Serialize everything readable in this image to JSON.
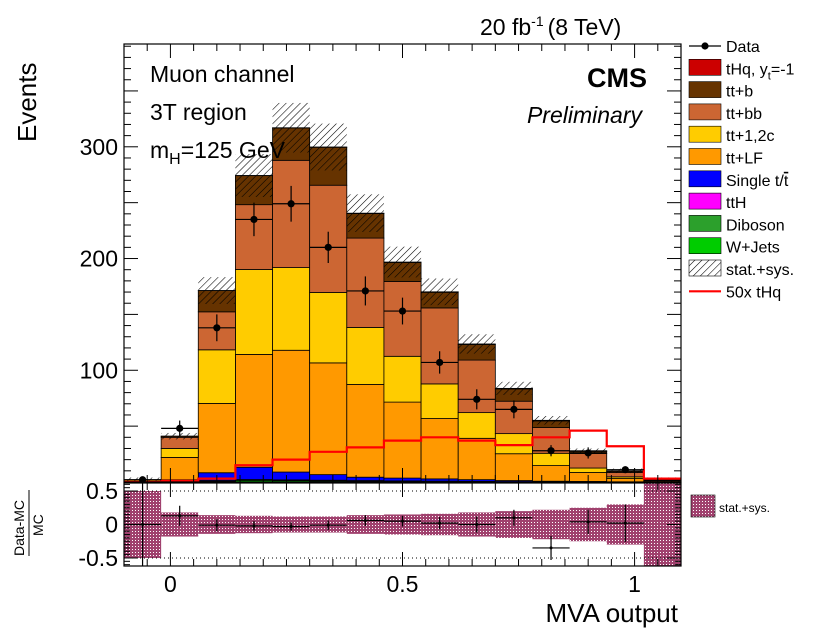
{
  "chart_data": {
    "type": "bar",
    "subtype": "stacked-histogram",
    "header_right": {
      "lumi": "20 fb",
      "lumi_exp": "-1",
      "energy": "(8 TeV)"
    },
    "experiment": "CMS",
    "status": "Preliminary",
    "annotations": [
      {
        "main": "Muon channel",
        "sub": ""
      },
      {
        "main": "3T region",
        "sub": ""
      },
      {
        "main": "m",
        "sub": "H",
        "rest": "=125 GeV"
      }
    ],
    "ylabel": "Events",
    "xlabel": "MVA output",
    "ylim": [
      0,
      392
    ],
    "yticks": [
      100,
      200,
      300
    ],
    "xlim": [
      -0.1,
      1.1
    ],
    "xticks": [
      0,
      0.5,
      1
    ],
    "xtick_labels": [
      "0",
      "0.5",
      "1"
    ],
    "bin_edges": [
      -0.1,
      -0.02,
      0.06,
      0.14,
      0.22,
      0.3,
      0.38,
      0.46,
      0.54,
      0.62,
      0.7,
      0.78,
      0.86,
      0.94,
      1.02,
      1.1
    ],
    "series": [
      {
        "name": "W+Jets",
        "label": "W+Jets",
        "color": "#00cc00",
        "values": [
          0,
          0.3,
          0.8,
          1.5,
          1.2,
          1.0,
          0.8,
          0.6,
          0.5,
          0.3,
          0.2,
          0.1,
          0.1,
          0,
          0
        ]
      },
      {
        "name": "Diboson",
        "label": "Diboson",
        "color": "#2ca02c",
        "values": [
          0,
          0.1,
          0.2,
          0.3,
          0.3,
          0.2,
          0.2,
          0.1,
          0.1,
          0.1,
          0,
          0,
          0,
          0,
          0
        ]
      },
      {
        "name": "ttH",
        "label": "ttH",
        "color": "#ff00ff",
        "values": [
          0,
          0.1,
          0.3,
          0.4,
          0.4,
          0.4,
          0.3,
          0.3,
          0.2,
          0.2,
          0.1,
          0.1,
          0.1,
          0,
          0
        ]
      },
      {
        "name": "single-top",
        "label": "Single t/",
        "label_bar": "t",
        "color": "#0000ff",
        "values": [
          0,
          1.5,
          7,
          11,
          7,
          5,
          3,
          2.5,
          2,
          1.5,
          1,
          0.5,
          0.3,
          0.1,
          0
        ]
      },
      {
        "name": "tt-lf",
        "label": "tt+LF",
        "color": "#ff9900",
        "values": [
          2,
          20,
          62,
          101,
          109,
          100,
          83,
          68,
          54,
          37,
          24,
          14,
          8,
          3,
          1
        ]
      },
      {
        "name": "tt-12c",
        "label": "tt+1,2c",
        "color": "#ffcc00",
        "values": [
          0,
          8,
          48,
          76,
          74,
          63,
          51,
          41,
          31,
          23,
          18,
          11,
          4,
          1.5,
          0
        ]
      },
      {
        "name": "tt-bb",
        "label": "tt+bb",
        "color": "#cc6633",
        "values": [
          0,
          10,
          34,
          58,
          96,
          96,
          80,
          67,
          68,
          47,
          29,
          23,
          13,
          4,
          0.5
        ]
      },
      {
        "name": "tt-b",
        "label": "tt+b",
        "color": "#663300",
        "values": [
          0,
          1,
          19,
          26,
          29,
          34,
          22,
          17,
          14,
          14,
          11,
          6,
          2,
          1,
          0.5
        ]
      },
      {
        "name": "tHq-yt-1",
        "label": "tHq, y",
        "label_sub": "t",
        "label_rest": "=-1",
        "color": "#cc0000",
        "values": [
          0,
          0.01,
          0.05,
          0.1,
          0.15,
          0.2,
          0.3,
          0.35,
          0.4,
          0.45,
          0.5,
          0.5,
          0.5,
          0.4,
          0.1
        ]
      }
    ],
    "signal_50x_tHq": {
      "label": "50x tHq",
      "color": "#ff0000",
      "values": [
        0,
        1,
        3,
        15,
        20,
        27,
        31,
        37,
        40,
        37,
        33,
        40,
        46,
        32,
        3
      ]
    },
    "data": {
      "label": "Data",
      "x": [
        -0.06,
        0.02,
        0.1,
        0.18,
        0.26,
        0.34,
        0.42,
        0.5,
        0.58,
        0.66,
        0.74,
        0.82,
        0.9,
        0.98
      ],
      "y": [
        2,
        48,
        138,
        235,
        249,
        210,
        171,
        153,
        107,
        74,
        65,
        28,
        26,
        11
      ],
      "err": [
        1.5,
        7,
        12,
        15,
        16,
        14,
        13,
        12,
        10,
        9,
        8,
        5,
        5,
        3
      ]
    },
    "uncertainty_label": "stat.+sys.",
    "ratio": {
      "ylabel_num": "Data-MC",
      "ylabel_den": "MC",
      "ylim": [
        -0.62,
        0.62
      ],
      "yticks": [
        0.5,
        0,
        -0.5
      ],
      "ytick_labels": [
        "0.5",
        "0",
        "-0.5"
      ],
      "values": [
        0,
        0.13,
        -0.01,
        -0.02,
        -0.03,
        -0.01,
        0.06,
        0.05,
        0.02,
        0.0,
        0.1,
        -0.35,
        0.04,
        0.02
      ],
      "err": [
        0.75,
        0.15,
        0.09,
        0.07,
        0.06,
        0.07,
        0.08,
        0.08,
        0.09,
        0.12,
        0.12,
        0.18,
        0.18,
        0.28
      ],
      "band": [
        0.5,
        0.18,
        0.14,
        0.13,
        0.12,
        0.12,
        0.14,
        0.15,
        0.16,
        0.18,
        0.2,
        0.22,
        0.25,
        0.3,
        0.7
      ],
      "legend_label": "stat.+sys."
    }
  }
}
